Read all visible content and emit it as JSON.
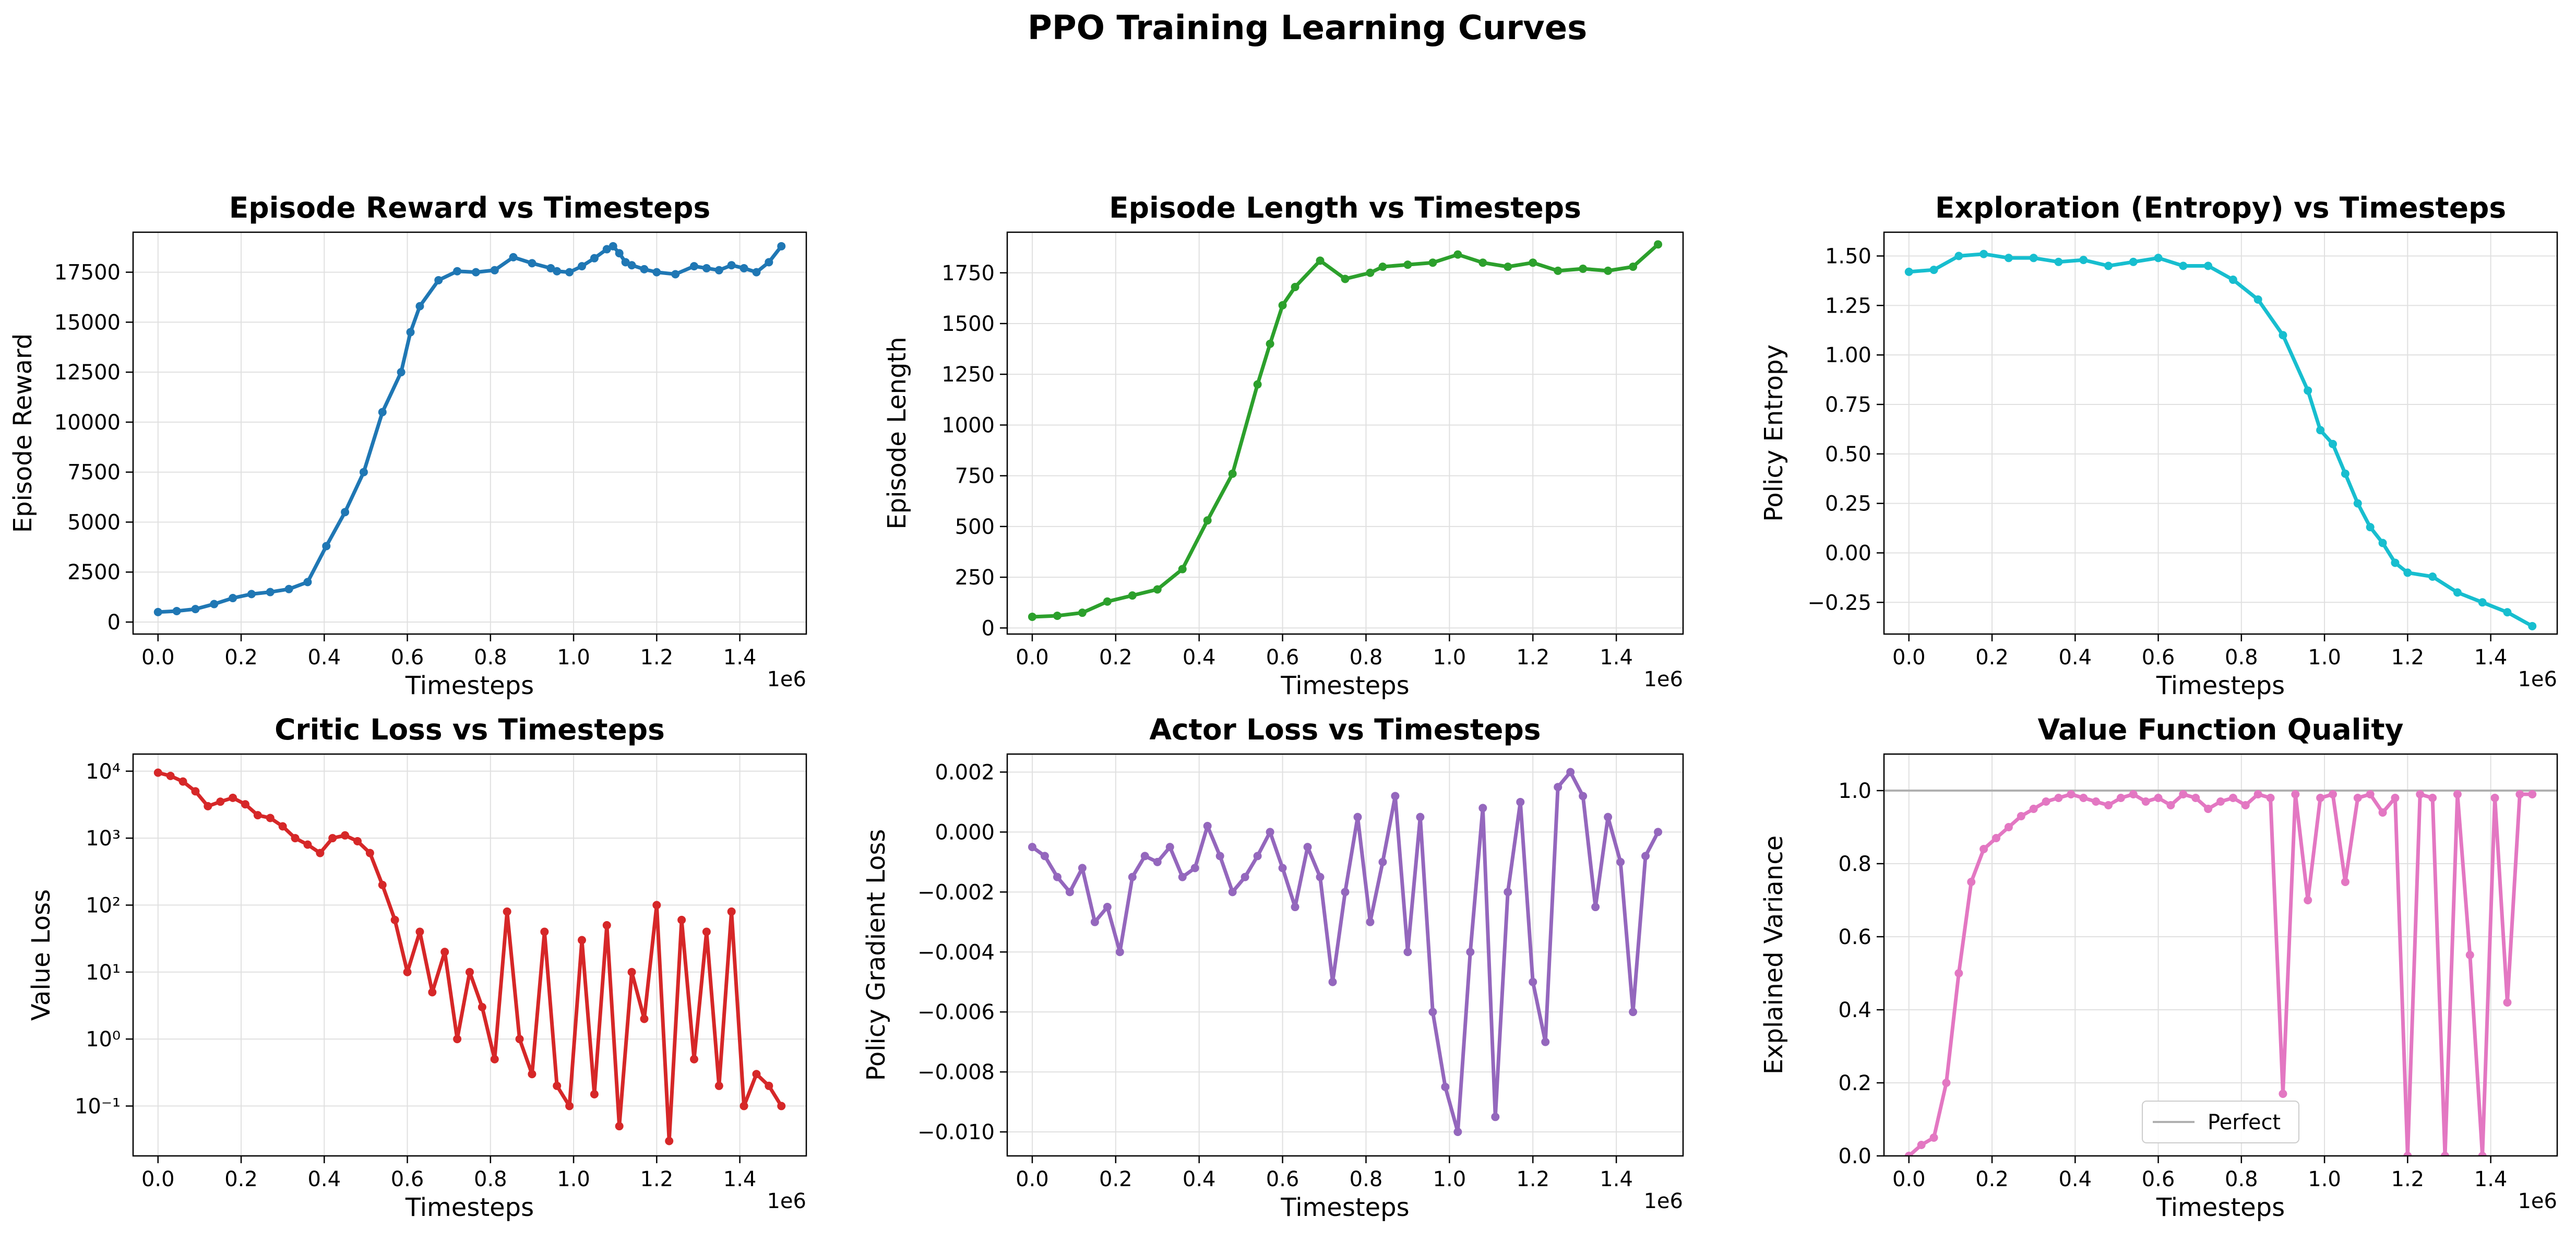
{
  "figure": {
    "suptitle": "PPO Training Learning Curves"
  },
  "chart_data": [
    {
      "type": "line",
      "title": "Episode Reward vs Timesteps",
      "xlabel": "Timesteps",
      "ylabel": "Episode Reward",
      "x_offset_label": "1e6",
      "x_range": [
        0,
        1500000
      ],
      "xlim": [
        -60000,
        1560000
      ],
      "ylim": [
        -600,
        19500
      ],
      "xticks": [
        0,
        200000,
        400000,
        600000,
        800000,
        1000000,
        1200000,
        1400000
      ],
      "xtick_labels": [
        "0.0",
        "0.2",
        "0.4",
        "0.6",
        "0.8",
        "1.0",
        "1.2",
        "1.4"
      ],
      "yticks": [
        0,
        2500,
        5000,
        7500,
        10000,
        12500,
        15000,
        17500
      ],
      "ytick_labels": [
        "0",
        "2500",
        "5000",
        "7500",
        "10000",
        "12500",
        "15000",
        "17500"
      ],
      "scale": "linear",
      "grid": true,
      "color": "#1f77b4",
      "series": [
        {
          "x_pct": [
            0,
            3,
            6,
            9,
            12,
            15,
            18,
            21,
            24,
            27,
            30,
            33,
            36,
            39,
            40.5,
            42,
            45,
            48,
            51,
            54,
            57,
            60,
            63,
            64,
            66,
            68,
            70,
            72,
            73,
            74,
            75,
            76,
            78,
            80,
            83,
            86,
            88,
            90,
            92,
            94,
            96,
            98,
            100
          ],
          "values": [
            500,
            550,
            650,
            900,
            1200,
            1400,
            1500,
            1650,
            2000,
            3800,
            5500,
            7500,
            10500,
            12500,
            14500,
            15800,
            17100,
            17550,
            17500,
            17600,
            18250,
            17950,
            17700,
            17550,
            17500,
            17800,
            18200,
            18650,
            18800,
            18450,
            18000,
            17850,
            17650,
            17500,
            17400,
            17800,
            17700,
            17600,
            17850,
            17700,
            17500,
            18000,
            18800
          ]
        }
      ]
    },
    {
      "type": "line",
      "title": "Episode Length vs Timesteps",
      "xlabel": "Timesteps",
      "ylabel": "Episode Length",
      "x_offset_label": "1e6",
      "x_range": [
        0,
        1500000
      ],
      "xlim": [
        -60000,
        1560000
      ],
      "ylim": [
        -30,
        1950
      ],
      "xticks": [
        0,
        200000,
        400000,
        600000,
        800000,
        1000000,
        1200000,
        1400000
      ],
      "xtick_labels": [
        "0.0",
        "0.2",
        "0.4",
        "0.6",
        "0.8",
        "1.0",
        "1.2",
        "1.4"
      ],
      "yticks": [
        0,
        250,
        500,
        750,
        1000,
        1250,
        1500,
        1750
      ],
      "ytick_labels": [
        "0",
        "250",
        "500",
        "750",
        "1000",
        "1250",
        "1500",
        "1750"
      ],
      "scale": "linear",
      "grid": true,
      "color": "#2ca02c",
      "series": [
        {
          "x_pct": [
            0,
            4,
            8,
            12,
            16,
            20,
            24,
            28,
            32,
            36,
            38,
            40,
            42,
            46,
            50,
            54,
            56,
            60,
            64,
            68,
            72,
            76,
            80,
            84,
            88,
            92,
            96,
            100
          ],
          "values": [
            55,
            60,
            75,
            130,
            160,
            190,
            290,
            530,
            760,
            1200,
            1400,
            1590,
            1680,
            1810,
            1720,
            1750,
            1780,
            1790,
            1800,
            1840,
            1800,
            1780,
            1800,
            1760,
            1770,
            1760,
            1780,
            1890
          ]
        }
      ]
    },
    {
      "type": "line",
      "title": "Exploration (Entropy) vs Timesteps",
      "xlabel": "Timesteps",
      "ylabel": "Policy Entropy",
      "x_offset_label": "1e6",
      "x_range": [
        0,
        1500000
      ],
      "xlim": [
        -60000,
        1560000
      ],
      "ylim": [
        -0.41,
        1.62
      ],
      "xticks": [
        0,
        200000,
        400000,
        600000,
        800000,
        1000000,
        1200000,
        1400000
      ],
      "xtick_labels": [
        "0.0",
        "0.2",
        "0.4",
        "0.6",
        "0.8",
        "1.0",
        "1.2",
        "1.4"
      ],
      "yticks": [
        -0.25,
        0.0,
        0.25,
        0.5,
        0.75,
        1.0,
        1.25,
        1.5
      ],
      "ytick_labels": [
        "−0.25",
        "0.00",
        "0.25",
        "0.50",
        "0.75",
        "1.00",
        "1.25",
        "1.50"
      ],
      "scale": "linear",
      "grid": true,
      "color": "#17becf",
      "series": [
        {
          "x_pct": [
            0,
            4,
            8,
            12,
            16,
            20,
            24,
            28,
            32,
            36,
            40,
            44,
            48,
            52,
            56,
            60,
            64,
            66,
            68,
            70,
            72,
            74,
            76,
            78,
            80,
            84,
            88,
            92,
            96,
            100
          ],
          "values": [
            1.42,
            1.43,
            1.5,
            1.51,
            1.49,
            1.49,
            1.47,
            1.48,
            1.45,
            1.47,
            1.49,
            1.45,
            1.45,
            1.38,
            1.28,
            1.1,
            0.82,
            0.62,
            0.55,
            0.4,
            0.25,
            0.13,
            0.05,
            -0.05,
            -0.1,
            -0.12,
            -0.2,
            -0.25,
            -0.3,
            -0.37
          ]
        }
      ]
    },
    {
      "type": "line",
      "title": "Critic Loss vs Timesteps",
      "xlabel": "Timesteps",
      "ylabel": "Value Loss",
      "x_offset_label": "1e6",
      "x_range": [
        0,
        1500000
      ],
      "xlim": [
        -60000,
        1560000
      ],
      "ylim": [
        0.018,
        18000
      ],
      "xticks": [
        0,
        200000,
        400000,
        600000,
        800000,
        1000000,
        1200000,
        1400000
      ],
      "xtick_labels": [
        "0.0",
        "0.2",
        "0.4",
        "0.6",
        "0.8",
        "1.0",
        "1.2",
        "1.4"
      ],
      "yticks": [
        0.1,
        1,
        10,
        100,
        1000,
        10000
      ],
      "ytick_labels": [
        "10⁻¹",
        "10⁰",
        "10¹",
        "10²",
        "10³",
        "10⁴"
      ],
      "scale": "log",
      "grid": true,
      "color": "#d62728",
      "series": [
        {
          "x_pct": [
            0,
            2,
            4,
            6,
            8,
            10,
            12,
            14,
            16,
            18,
            20,
            22,
            24,
            26,
            28,
            30,
            32,
            34,
            36,
            38,
            40,
            42,
            44,
            46,
            48,
            50,
            52,
            54,
            56,
            58,
            60,
            62,
            64,
            66,
            68,
            70,
            72,
            74,
            76,
            78,
            80,
            82,
            84,
            86,
            88,
            90,
            92,
            94,
            96,
            98,
            100
          ],
          "values": [
            9500,
            8500,
            7000,
            5000,
            3000,
            3500,
            4000,
            3200,
            2200,
            2000,
            1500,
            1000,
            800,
            600,
            1000,
            1100,
            900,
            600,
            200,
            60,
            10,
            40,
            5,
            20,
            1,
            10,
            3,
            0.5,
            80,
            1,
            0.3,
            40,
            0.2,
            0.1,
            30,
            0.15,
            50,
            0.05,
            10,
            2,
            100,
            0.03,
            60,
            0.5,
            40,
            0.2,
            80,
            0.1,
            0.3,
            0.2,
            0.1
          ]
        }
      ]
    },
    {
      "type": "line",
      "title": "Actor Loss vs Timesteps",
      "xlabel": "Timesteps",
      "ylabel": "Policy Gradient Loss",
      "x_offset_label": "1e6",
      "x_range": [
        0,
        1500000
      ],
      "xlim": [
        -60000,
        1560000
      ],
      "ylim": [
        -0.0108,
        0.0026
      ],
      "xticks": [
        0,
        200000,
        400000,
        600000,
        800000,
        1000000,
        1200000,
        1400000
      ],
      "xtick_labels": [
        "0.0",
        "0.2",
        "0.4",
        "0.6",
        "0.8",
        "1.0",
        "1.2",
        "1.4"
      ],
      "yticks": [
        -0.01,
        -0.008,
        -0.006,
        -0.004,
        -0.002,
        0.0,
        0.002
      ],
      "ytick_labels": [
        "−0.010",
        "−0.008",
        "−0.006",
        "−0.004",
        "−0.002",
        "0.000",
        "0.002"
      ],
      "scale": "linear",
      "grid": true,
      "color": "#9467bd",
      "series": [
        {
          "x_pct": [
            0,
            2,
            4,
            6,
            8,
            10,
            12,
            14,
            16,
            18,
            20,
            22,
            24,
            26,
            28,
            30,
            32,
            34,
            36,
            38,
            40,
            42,
            44,
            46,
            48,
            50,
            52,
            54,
            56,
            58,
            60,
            62,
            64,
            66,
            68,
            70,
            72,
            74,
            76,
            78,
            80,
            82,
            84,
            86,
            88,
            90,
            92,
            94,
            96,
            98,
            100
          ],
          "values": [
            -0.0005,
            -0.0008,
            -0.0015,
            -0.002,
            -0.0012,
            -0.003,
            -0.0025,
            -0.004,
            -0.0015,
            -0.0008,
            -0.001,
            -0.0005,
            -0.0015,
            -0.0012,
            0.0002,
            -0.0008,
            -0.002,
            -0.0015,
            -0.0008,
            0.0,
            -0.0012,
            -0.0025,
            -0.0005,
            -0.0015,
            -0.005,
            -0.002,
            0.0005,
            -0.003,
            -0.001,
            0.0012,
            -0.004,
            0.0005,
            -0.006,
            -0.0085,
            -0.01,
            -0.004,
            0.0008,
            -0.0095,
            -0.002,
            0.001,
            -0.005,
            -0.007,
            0.0015,
            0.002,
            0.0012,
            -0.0025,
            0.0005,
            -0.001,
            -0.006,
            -0.0008,
            0.0
          ]
        }
      ]
    },
    {
      "type": "line",
      "title": "Value Function Quality",
      "xlabel": "Timesteps",
      "ylabel": "Explained Variance",
      "x_offset_label": "1e6",
      "x_range": [
        0,
        1500000
      ],
      "xlim": [
        -60000,
        1560000
      ],
      "ylim": [
        0.0,
        1.1
      ],
      "xticks": [
        0,
        200000,
        400000,
        600000,
        800000,
        1000000,
        1200000,
        1400000
      ],
      "xtick_labels": [
        "0.0",
        "0.2",
        "0.4",
        "0.6",
        "0.8",
        "1.0",
        "1.2",
        "1.4"
      ],
      "yticks": [
        0.0,
        0.2,
        0.4,
        0.6,
        0.8,
        1.0
      ],
      "ytick_labels": [
        "0.0",
        "0.2",
        "0.4",
        "0.6",
        "0.8",
        "1.0"
      ],
      "scale": "linear",
      "grid": true,
      "color": "#e377c2",
      "reference_line": {
        "y": 1.0,
        "label": "Perfect",
        "color": "#b0b0b0"
      },
      "legend": {
        "entries": [
          "Perfect"
        ],
        "location": "lower center"
      },
      "series": [
        {
          "x_pct": [
            0,
            2,
            4,
            6,
            8,
            10,
            12,
            14,
            16,
            18,
            20,
            22,
            24,
            26,
            28,
            30,
            32,
            34,
            36,
            38,
            40,
            42,
            44,
            46,
            48,
            50,
            52,
            54,
            56,
            58,
            60,
            62,
            64,
            66,
            68,
            70,
            72,
            74,
            76,
            78,
            80,
            82,
            84,
            86,
            88,
            90,
            92,
            94,
            96,
            98,
            100
          ],
          "values": [
            0.0,
            0.03,
            0.05,
            0.2,
            0.5,
            0.75,
            0.84,
            0.87,
            0.9,
            0.93,
            0.95,
            0.97,
            0.98,
            0.99,
            0.98,
            0.97,
            0.96,
            0.98,
            0.99,
            0.97,
            0.98,
            0.96,
            0.99,
            0.98,
            0.95,
            0.97,
            0.98,
            0.96,
            0.99,
            0.98,
            0.17,
            0.99,
            0.7,
            0.98,
            0.99,
            0.75,
            0.98,
            0.99,
            0.94,
            0.98,
            0.0,
            0.99,
            0.98,
            0.0,
            0.99,
            0.55,
            0.0,
            0.98,
            0.42,
            0.99,
            0.99
          ]
        }
      ]
    }
  ]
}
